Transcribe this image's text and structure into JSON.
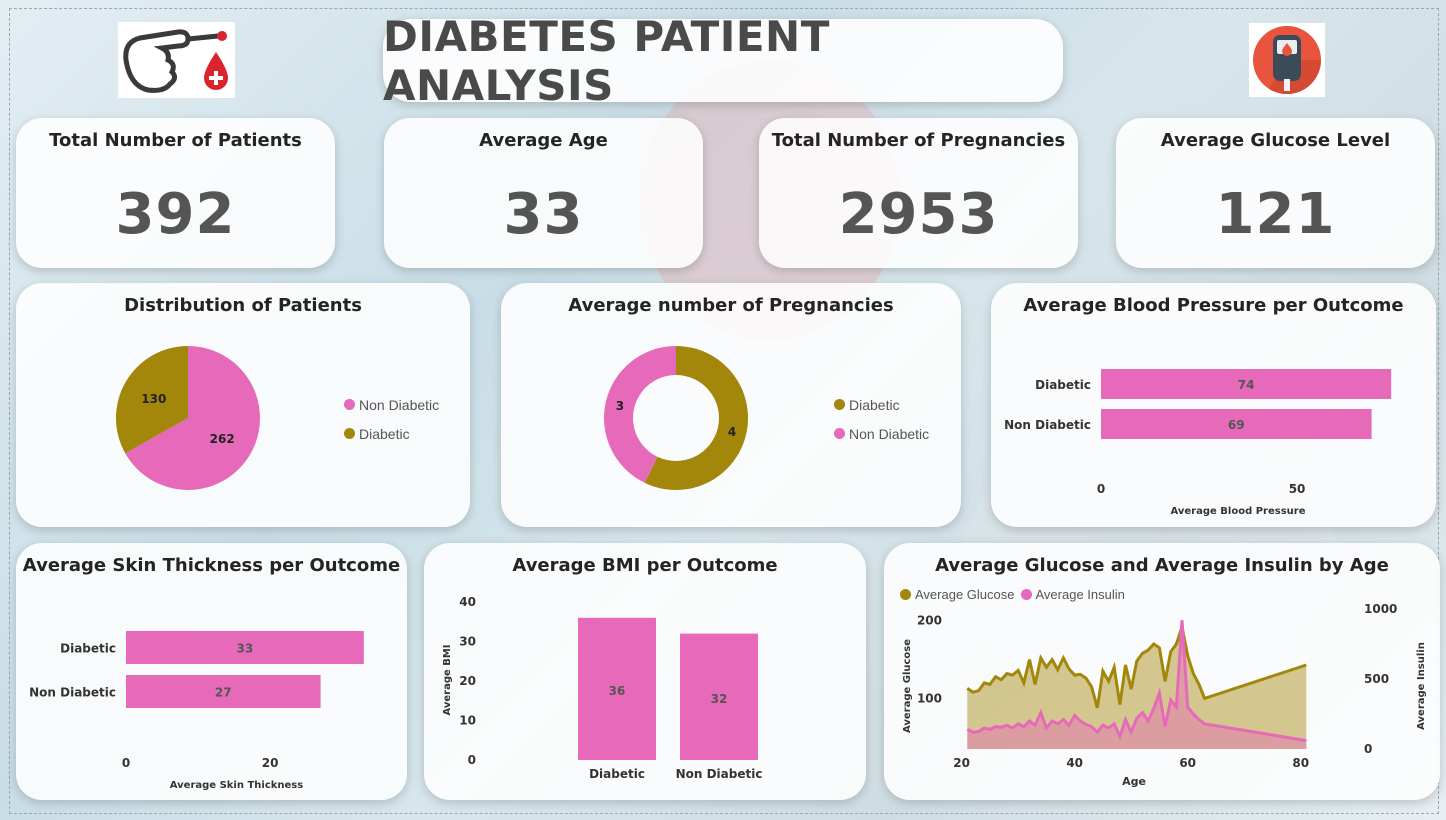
{
  "header": {
    "title": "DIABETES PATIENT ANALYSIS"
  },
  "icons": {
    "left": "pointing-hand-blood-drop-icon",
    "right": "glucose-meter-icon"
  },
  "colors": {
    "diabetic": "#A3870B",
    "non_diabetic": "#E66AB9",
    "text": "#252423",
    "kpi": "#555555"
  },
  "kpis": [
    {
      "label": "Total Number of Patients",
      "value": "392"
    },
    {
      "label": "Average Age",
      "value": "33"
    },
    {
      "label": "Total Number of Pregnancies",
      "value": "2953"
    },
    {
      "label": "Average Glucose Level",
      "value": "121"
    }
  ],
  "chart_data": [
    {
      "type": "pie",
      "title": "Distribution of Patients",
      "categories": [
        "Non Diabetic",
        "Diabetic"
      ],
      "values": [
        262,
        130
      ],
      "legend_position": "right"
    },
    {
      "type": "pie",
      "subtype": "donut",
      "title": "Average number of Pregnancies",
      "categories": [
        "Diabetic",
        "Non Diabetic"
      ],
      "values": [
        4,
        3
      ],
      "legend_position": "right"
    },
    {
      "type": "bar",
      "orientation": "horizontal",
      "title": "Average Blood Pressure per Outcome",
      "categories": [
        "Diabetic",
        "Non Diabetic"
      ],
      "values": [
        74,
        69
      ],
      "xlabel": "Average Blood Pressure",
      "xticks": [
        "0",
        "50"
      ],
      "xlim": [
        0,
        76
      ]
    },
    {
      "type": "bar",
      "orientation": "horizontal",
      "title": "Average Skin Thickness per Outcome",
      "categories": [
        "Diabetic",
        "Non Diabetic"
      ],
      "values": [
        33,
        27
      ],
      "xlabel": "Average Skin Thickness",
      "xticks": [
        "0",
        "20"
      ],
      "xlim": [
        0,
        34
      ]
    },
    {
      "type": "bar",
      "orientation": "vertical",
      "title": "Average BMI per Outcome",
      "categories": [
        "Diabetic",
        "Non Diabetic"
      ],
      "values": [
        36,
        32
      ],
      "ylabel": "Average BMI",
      "yticks": [
        "0",
        "10",
        "20",
        "30",
        "40"
      ],
      "ylim": [
        0,
        40
      ]
    },
    {
      "type": "area",
      "title": "Average Glucose and Average Insulin by Age",
      "xlabel": "Age",
      "ylabel": "Average Glucose",
      "y2label": "Average Insulin",
      "xticks": [
        "20",
        "40",
        "60",
        "80"
      ],
      "yticks": [
        "100",
        "200"
      ],
      "y2ticks": [
        "0",
        "500",
        "1000"
      ],
      "xlim": [
        19,
        82
      ],
      "ylim": [
        35,
        215
      ],
      "y2lim": [
        0,
        1000
      ],
      "legend_position": "top-left",
      "series": [
        {
          "name": "Average Glucose",
          "axis": "left",
          "x": [
            21,
            22,
            23,
            24,
            25,
            26,
            27,
            28,
            29,
            30,
            31,
            32,
            33,
            34,
            35,
            36,
            37,
            38,
            39,
            40,
            41,
            42,
            43,
            44,
            45,
            46,
            47,
            48,
            49,
            50,
            51,
            52,
            53,
            54,
            55,
            56,
            57,
            58,
            59,
            60,
            61,
            62,
            63,
            81
          ],
          "values": [
            113,
            108,
            110,
            120,
            118,
            128,
            124,
            132,
            130,
            136,
            120,
            150,
            118,
            152,
            140,
            150,
            137,
            152,
            138,
            130,
            131,
            126,
            115,
            88,
            135,
            122,
            140,
            92,
            143,
            112,
            148,
            158,
            162,
            170,
            165,
            122,
            160,
            170,
            192,
            155,
            132,
            118,
            100,
            143
          ]
        },
        {
          "name": "Average Insulin",
          "axis": "right",
          "x": [
            21,
            22,
            23,
            24,
            25,
            26,
            27,
            28,
            29,
            30,
            31,
            32,
            33,
            34,
            35,
            36,
            37,
            38,
            39,
            40,
            41,
            42,
            43,
            44,
            45,
            46,
            47,
            48,
            49,
            50,
            51,
            52,
            53,
            54,
            55,
            56,
            57,
            58,
            59,
            60,
            61,
            62,
            63,
            81
          ],
          "values": [
            140,
            120,
            125,
            150,
            140,
            160,
            155,
            170,
            150,
            180,
            160,
            200,
            170,
            260,
            150,
            200,
            180,
            210,
            170,
            240,
            200,
            175,
            160,
            120,
            170,
            150,
            180,
            90,
            210,
            120,
            220,
            260,
            200,
            290,
            400,
            160,
            350,
            300,
            920,
            300,
            250,
            210,
            180,
            60
          ]
        }
      ]
    }
  ]
}
